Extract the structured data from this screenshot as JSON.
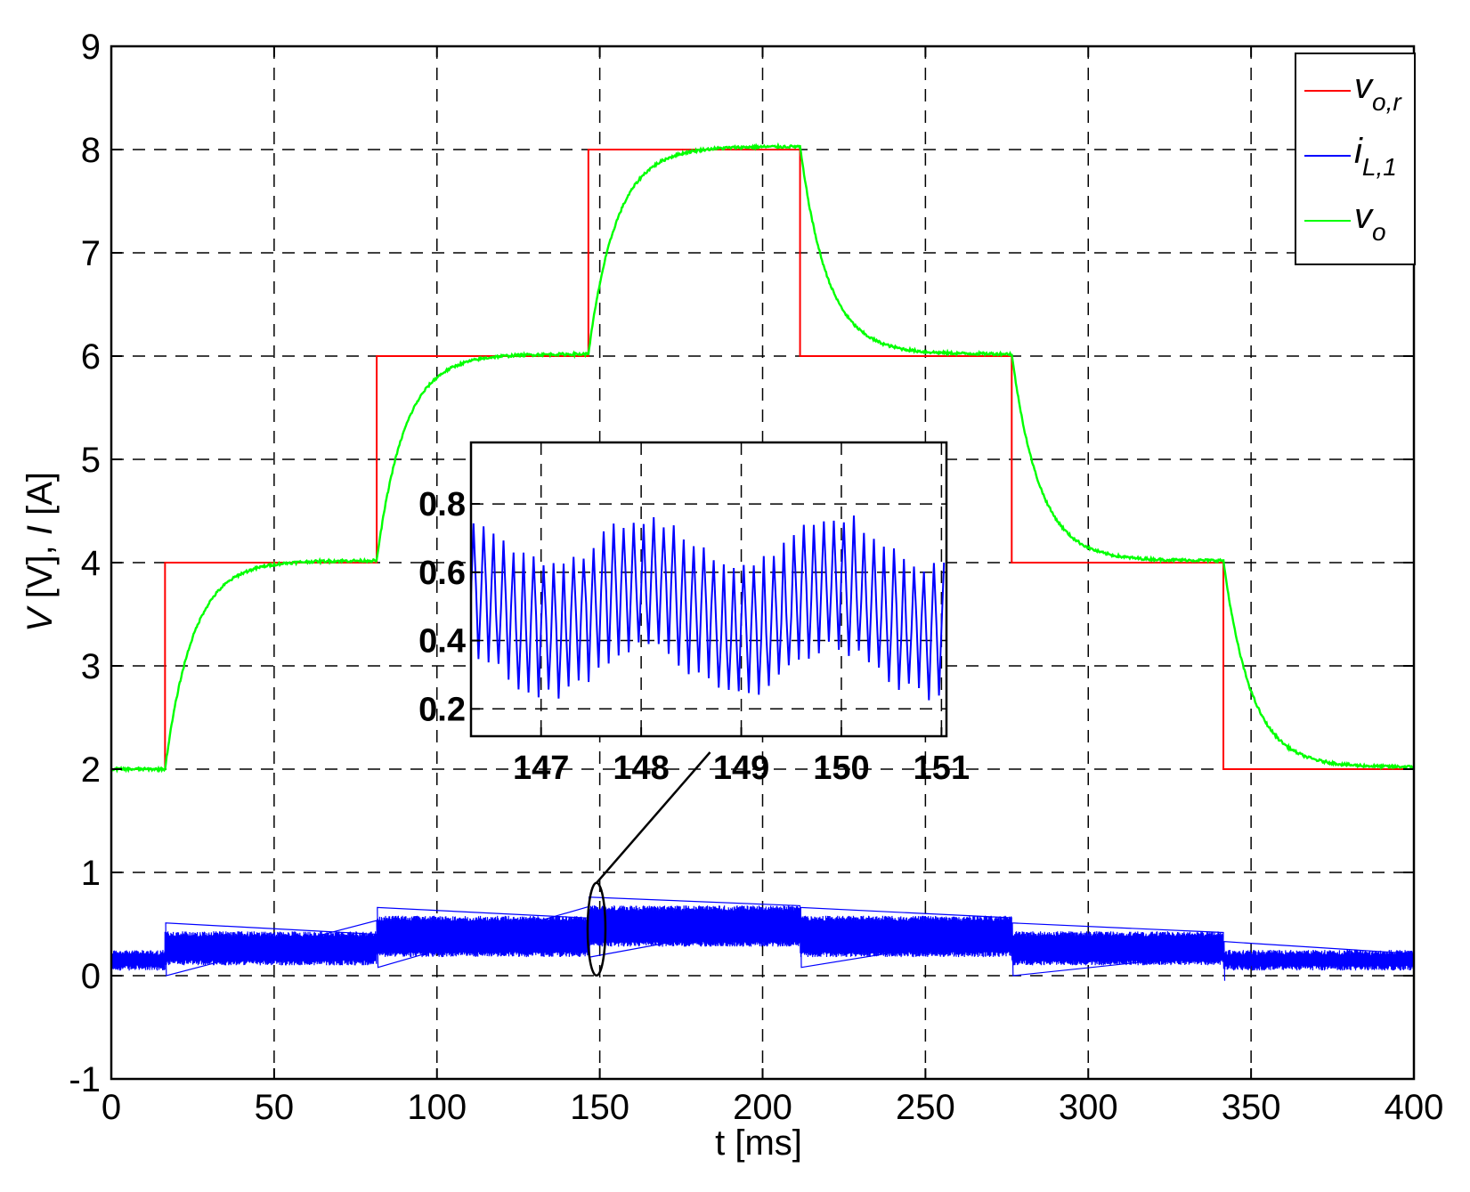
{
  "chart_data": {
    "type": "line",
    "xlabel": "t [ms]",
    "ylabel": {
      "v": "V",
      "vu": " [V], ",
      "i": "I",
      "iu": " [A]"
    },
    "xlim": [
      0,
      400
    ],
    "ylim": [
      -1,
      9
    ],
    "xticks": [
      "0",
      "50",
      "100",
      "150",
      "200",
      "250",
      "300",
      "350",
      "400"
    ],
    "yticks": [
      "-1",
      "0",
      "1",
      "2",
      "3",
      "4",
      "5",
      "6",
      "7",
      "8",
      "9"
    ],
    "grid": true,
    "legend": {
      "placement": "top-right",
      "entries": [
        {
          "base": "v",
          "sub": "o,r",
          "color": "#ff0000"
        },
        {
          "base": "i",
          "sub": "L,1",
          "color": "#0000ff"
        },
        {
          "base": "v",
          "sub": "o",
          "color": "#00ff00"
        }
      ]
    },
    "series": [
      {
        "name": "v_o,r",
        "color": "#ff0000",
        "kind": "step",
        "x": [
          0,
          16.5,
          81.5,
          146.5,
          211.5,
          276.5,
          341.5,
          400
        ],
        "y": [
          2,
          4,
          6,
          8,
          6,
          4,
          2,
          2
        ]
      },
      {
        "name": "v_o",
        "color": "#00ff00",
        "kind": "first-order-response",
        "step_times": [
          0,
          16.5,
          81.5,
          146.5,
          211.5,
          276.5,
          341.5
        ],
        "levels": [
          2,
          4.02,
          6.02,
          8.03,
          6.02,
          4.02,
          2.02
        ],
        "time_constant_ms": 8.5,
        "x_end": 400
      },
      {
        "name": "i_L,1",
        "color": "#0000ff",
        "kind": "ripple-band",
        "segments": [
          {
            "x": [
              0,
              16.5
            ],
            "low": 0.05,
            "high": 0.25
          },
          {
            "x": [
              16.5,
              81.5
            ],
            "low": 0.1,
            "high": 0.43
          },
          {
            "x": [
              81.5,
              146.5
            ],
            "low": 0.18,
            "high": 0.58
          },
          {
            "x": [
              146.5,
              211.5
            ],
            "low": 0.28,
            "high": 0.68
          },
          {
            "x": [
              211.5,
              276.5
            ],
            "low": 0.18,
            "high": 0.58
          },
          {
            "x": [
              276.5,
              341.5
            ],
            "low": 0.1,
            "high": 0.43
          },
          {
            "x": [
              341.5,
              400
            ],
            "low": 0.05,
            "high": 0.25
          }
        ]
      }
    ],
    "inset": {
      "type": "line",
      "series_name": "i_L,1",
      "color": "#0000ff",
      "xlim": [
        146.3,
        151.05
      ],
      "ylim": [
        0.12,
        0.98
      ],
      "xticks": [
        "147",
        "148",
        "149",
        "150",
        "151"
      ],
      "yticks": [
        "0.2",
        "0.4",
        "0.6",
        "0.8"
      ],
      "grid": true,
      "mean": 0.5,
      "slow_oscillation_amplitude": 0.07,
      "slow_oscillation_period": 1.9,
      "ripple_amplitude": 0.2,
      "ripple_period": 0.1,
      "zoom_marker": {
        "x": 149,
        "y": 0.45,
        "target_x": 149
      }
    }
  }
}
